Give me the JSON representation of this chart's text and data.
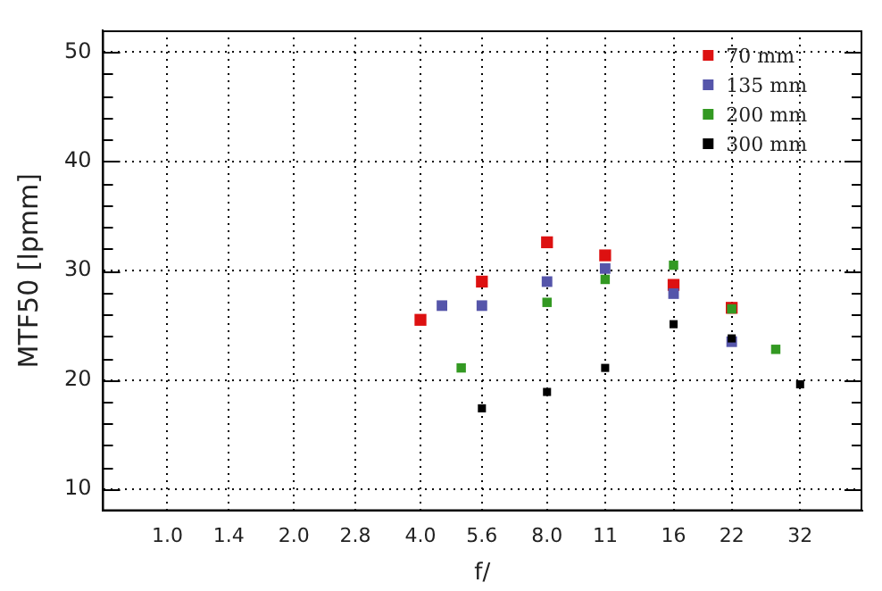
{
  "chart_data": {
    "type": "scatter",
    "xlabel": "f/",
    "ylabel": "MTF50 [lpmm]",
    "log": "x",
    "xlim": [
      0.71,
      45
    ],
    "xticks": [
      {
        "value": 1,
        "label": "1.0"
      },
      1.4,
      {
        "value": 2,
        "label": "2.0"
      },
      2.8,
      {
        "value": 4,
        "label": "4.0"
      },
      5.6,
      {
        "value": 8,
        "label": "8.0"
      },
      11,
      16,
      22,
      32
    ],
    "ylim": [
      8,
      52
    ],
    "yticks": [
      10,
      {
        "value": 12,
        "label": null
      },
      {
        "value": 14,
        "label": null
      },
      {
        "value": 16,
        "label": null
      },
      {
        "value": 18,
        "label": null
      },
      20,
      {
        "value": 22,
        "label": null
      },
      {
        "value": 24,
        "label": null
      },
      {
        "value": 26,
        "label": null
      },
      {
        "value": 28,
        "label": null
      },
      30,
      {
        "value": 32,
        "label": null
      },
      {
        "value": 34,
        "label": null
      },
      {
        "value": 36,
        "label": null
      },
      {
        "value": 38,
        "label": null
      },
      40,
      {
        "value": 42,
        "label": null
      },
      {
        "value": 44,
        "label": null
      },
      {
        "value": 46,
        "label": null
      },
      {
        "value": 48,
        "label": null
      },
      50
    ],
    "grid": true,
    "legend": "top right",
    "marker": "square",
    "series": [
      {
        "name": "70 mm",
        "color": "#dd1111",
        "x": [
          4,
          5.6,
          8,
          11,
          16,
          22
        ],
        "values": [
          25.5,
          29.0,
          32.6,
          31.4,
          28.7,
          26.6
        ]
      },
      {
        "name": "135 mm",
        "color": "#5555aa",
        "x": [
          4.5,
          5.6,
          8,
          11,
          16,
          22
        ],
        "values": [
          26.8,
          26.8,
          29.0,
          30.2,
          27.9,
          23.5
        ]
      },
      {
        "name": "200 mm",
        "color": "#339922",
        "x": [
          5,
          8,
          11,
          16,
          22,
          28
        ],
        "values": [
          21.1,
          27.1,
          29.2,
          30.5,
          26.5,
          22.8
        ]
      },
      {
        "name": "300 mm",
        "color": "#000000",
        "x": [
          5.6,
          8,
          11,
          16,
          22,
          32
        ],
        "values": [
          17.4,
          18.9,
          21.1,
          25.1,
          23.8,
          19.6
        ]
      }
    ]
  }
}
